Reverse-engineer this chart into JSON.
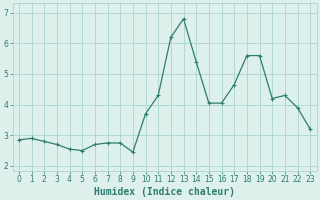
{
  "x": [
    0,
    1,
    2,
    3,
    4,
    5,
    6,
    7,
    8,
    9,
    10,
    11,
    12,
    13,
    14,
    15,
    16,
    17,
    18,
    19,
    20,
    21,
    22,
    23
  ],
  "y": [
    2.85,
    2.9,
    2.8,
    2.7,
    2.55,
    2.5,
    2.7,
    2.75,
    2.75,
    2.45,
    3.7,
    4.3,
    6.2,
    6.8,
    5.4,
    4.05,
    4.05,
    4.65,
    5.6,
    5.6,
    4.2,
    4.3,
    3.9,
    3.2
  ],
  "line_color": "#2e7d6e",
  "marker_color": "#2e7d6e",
  "bg_color": "#ddf0eb",
  "grid_color": "#aad4cc",
  "axis_color": "#2e7d6e",
  "xlabel": "Humidex (Indice chaleur)",
  "xlim": [
    -0.5,
    23.5
  ],
  "ylim": [
    1.85,
    7.3
  ],
  "yticks": [
    2,
    3,
    4,
    5,
    6,
    7
  ],
  "xticks": [
    0,
    1,
    2,
    3,
    4,
    5,
    6,
    7,
    8,
    9,
    10,
    11,
    12,
    13,
    14,
    15,
    16,
    17,
    18,
    19,
    20,
    21,
    22,
    23
  ],
  "tick_fontsize": 5.5,
  "xlabel_fontsize": 7,
  "linewidth": 0.9,
  "markersize": 3.5,
  "markeredgewidth": 0.8
}
